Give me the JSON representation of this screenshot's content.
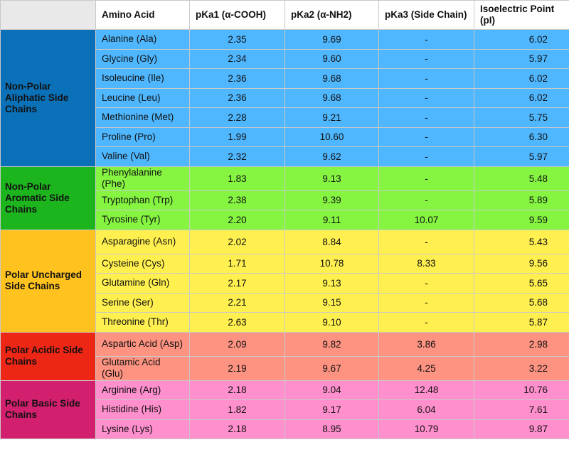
{
  "headers": [
    "",
    "Amino Acid",
    "pKa1 (α-COOH)",
    "pKa2 (α-NH2)",
    "pKa3 (Side Chain)",
    "Isoelectric Point (pI)"
  ],
  "groups": [
    {
      "label": "Non-Polar Aliphatic Side Chains",
      "group_color": "#0a70b8",
      "row_color": "#4fb7ff",
      "rows": [
        {
          "name": "Alanine (Ala)",
          "pka1": "2.35",
          "pka2": "9.69",
          "pka3": "-",
          "pi": "6.02"
        },
        {
          "name": "Glycine (Gly)",
          "pka1": "2.34",
          "pka2": "9.60",
          "pka3": "-",
          "pi": "5.97"
        },
        {
          "name": "Isoleucine (Ile)",
          "pka1": "2.36",
          "pka2": "9.68",
          "pka3": "-",
          "pi": "6.02"
        },
        {
          "name": "Leucine (Leu)",
          "pka1": "2.36",
          "pka2": "9.68",
          "pka3": "-",
          "pi": "6.02"
        },
        {
          "name": "Methionine (Met)",
          "pka1": "2.28",
          "pka2": "9.21",
          "pka3": "-",
          "pi": "5.75"
        },
        {
          "name": "Proline (Pro)",
          "pka1": "1.99",
          "pka2": "10.60",
          "pka3": "-",
          "pi": "6.30"
        },
        {
          "name": "Valine (Val)",
          "pka1": "2.32",
          "pka2": "9.62",
          "pka3": "-",
          "pi": "5.97"
        }
      ]
    },
    {
      "label": "Non-Polar Aromatic Side Chains",
      "group_color": "#1db51d",
      "row_color": "#85f542",
      "rows": [
        {
          "name": "Phenylalanine (Phe)",
          "pka1": "1.83",
          "pka2": "9.13",
          "pka3": "-",
          "pi": "5.48"
        },
        {
          "name": "Tryptophan (Trp)",
          "pka1": "2.38",
          "pka2": "9.39",
          "pka3": "-",
          "pi": "5.89"
        },
        {
          "name": "Tyrosine (Tyr)",
          "pka1": "2.20",
          "pka2": "9.11",
          "pka3": "10.07",
          "pi": "9.59"
        }
      ]
    },
    {
      "label": "Polar Uncharged Side Chains",
      "group_color": "#ffc21f",
      "row_color": "#fff04f",
      "rows": [
        {
          "name": "Asparagine (Asn)",
          "pka1": "2.02",
          "pka2": "8.84",
          "pka3": "-",
          "pi": "5.43"
        },
        {
          "name": "Cysteine (Cys)",
          "pka1": "1.71",
          "pka2": "10.78",
          "pka3": "8.33",
          "pi": "9.56"
        },
        {
          "name": "Glutamine (Gln)",
          "pka1": "2.17",
          "pka2": "9.13",
          "pka3": "-",
          "pi": "5.65"
        },
        {
          "name": "Serine (Ser)",
          "pka1": "2.21",
          "pka2": "9.15",
          "pka3": "-",
          "pi": "5.68"
        },
        {
          "name": "Threonine (Thr)",
          "pka1": "2.63",
          "pka2": "9.10",
          "pka3": "-",
          "pi": "5.87"
        }
      ]
    },
    {
      "label": "Polar Acidic Side Chains",
      "group_color": "#ee2616",
      "row_color": "#ff9382",
      "rows": [
        {
          "name": "Aspartic Acid (Asp)",
          "pka1": "2.09",
          "pka2": "9.82",
          "pka3": "3.86",
          "pi": "2.98"
        },
        {
          "name": "Glutamic Acid (Glu)",
          "pka1": "2.19",
          "pka2": "9.67",
          "pka3": "4.25",
          "pi": "3.22"
        }
      ]
    },
    {
      "label": "Polar Basic Side Chains",
      "group_color": "#d2206e",
      "row_color": "#ff8fcd",
      "rows": [
        {
          "name": "Arginine (Arg)",
          "pka1": "2.18",
          "pka2": "9.04",
          "pka3": "12.48",
          "pi": "10.76"
        },
        {
          "name": "Histidine (His)",
          "pka1": "1.82",
          "pka2": "9.17",
          "pka3": "6.04",
          "pi": "7.61"
        },
        {
          "name": "Lysine (Lys)",
          "pka1": "2.18",
          "pka2": "8.95",
          "pka3": "10.79",
          "pi": "9.87"
        }
      ]
    }
  ]
}
